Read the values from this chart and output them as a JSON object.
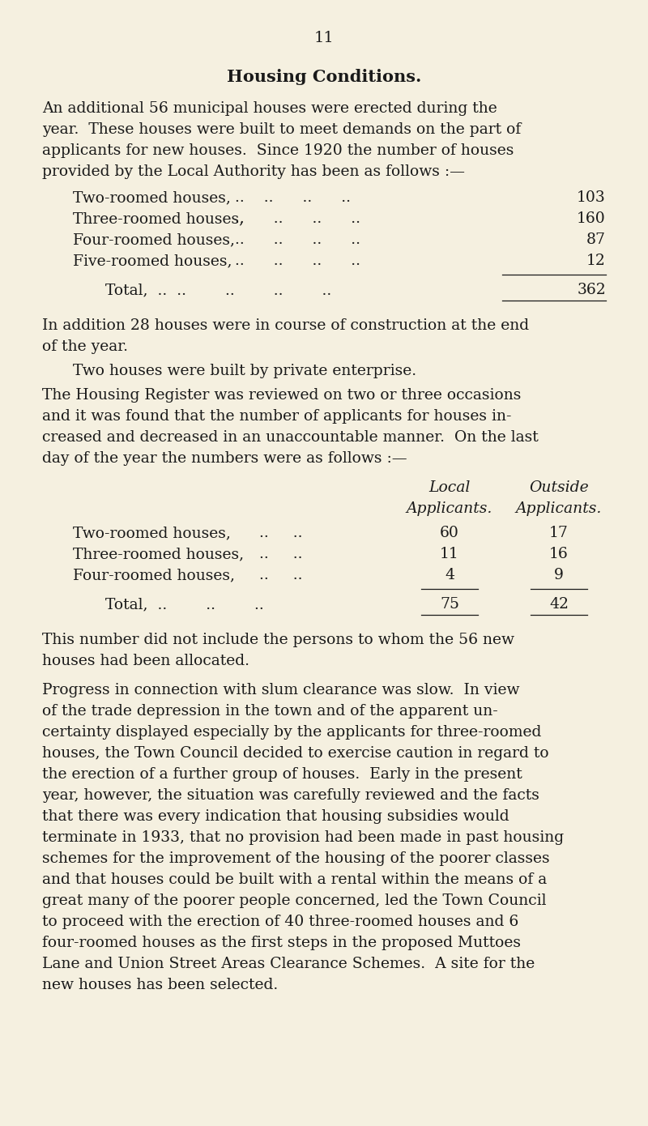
{
  "page_number": "11",
  "title": "Housing Conditions.",
  "background_color": "#f5f0e0",
  "text_color": "#1a1a1a",
  "para1_lines": [
    "An additional 56 municipal houses were erected during the",
    "year.  These houses were built to meet demands on the part of",
    "applicants for new houses.  Since 1920 the number of houses",
    "provided by the Local Authority has been as follows :—"
  ],
  "table1_rows": [
    [
      "Two-roomed houses,",
      "..    ..      ..      ..",
      "103"
    ],
    [
      "Three-roomed houses,",
      "..      ..      ..      ..",
      "160"
    ],
    [
      "Four-roomed houses,",
      "..      ..      ..      ..",
      "87"
    ],
    [
      "Five-roomed houses,",
      "..      ..      ..      ..",
      "12"
    ]
  ],
  "table1_total_label": "Total,  ..",
  "table1_total_dots": "  ..        ..        ..        ..",
  "table1_total_value": "362",
  "para2_lines": [
    "In addition 28 houses were in course of construction at the end",
    "of the year."
  ],
  "para3": "Two houses were built by private enterprise.",
  "para4_lines": [
    "The Housing Register was reviewed on two or three occasions",
    "and it was found that the number of applicants for houses in-",
    "creased and decreased in an unaccountable manner.  On the last",
    "day of the year the numbers were as follows :—"
  ],
  "table2_col1_header1": "Local",
  "table2_col1_header2": "Applicants.",
  "table2_col2_header1": "Outside",
  "table2_col2_header2": "Applicants.",
  "table2_rows": [
    [
      "Two-roomed houses,",
      "..     ..",
      "60",
      "17"
    ],
    [
      "Three-roomed houses,",
      "..     ..",
      "11",
      "16"
    ],
    [
      "Four-roomed houses,",
      "..     ..",
      "4",
      "9"
    ]
  ],
  "table2_total_label": "Total,",
  "table2_total_dots": "  ..        ..        ..",
  "table2_total_col1": "75",
  "table2_total_col2": "42",
  "para5_lines": [
    "This number did not include the persons to whom the 56 new",
    "houses had been allocated."
  ],
  "para6_lines": [
    "Progress in connection with slum clearance was slow.  In view",
    "of the trade depression in the town and of the apparent un-",
    "certainty displayed especially by the applicants for three-roomed",
    "houses, the Town Council decided to exercise caution in regard to",
    "the erection of a further group of houses.  Early in the present",
    "year, however, the situation was carefully reviewed and the facts",
    "that there was every indication that housing subsidies would",
    "terminate in 1933, that no provision had been made in past housing",
    "schemes for the improvement of the housing of the poorer classes",
    "and that houses could be built with a rental within the means of a",
    "great many of the poorer people concerned, led the Town Council",
    "to proceed with the erection of 40 three-roomed houses and 6",
    "four-roomed houses as the first steps in the proposed Muttoes",
    "Lane and Union Street Areas Clearance Schemes.  A site for the",
    "new houses has been selected."
  ]
}
